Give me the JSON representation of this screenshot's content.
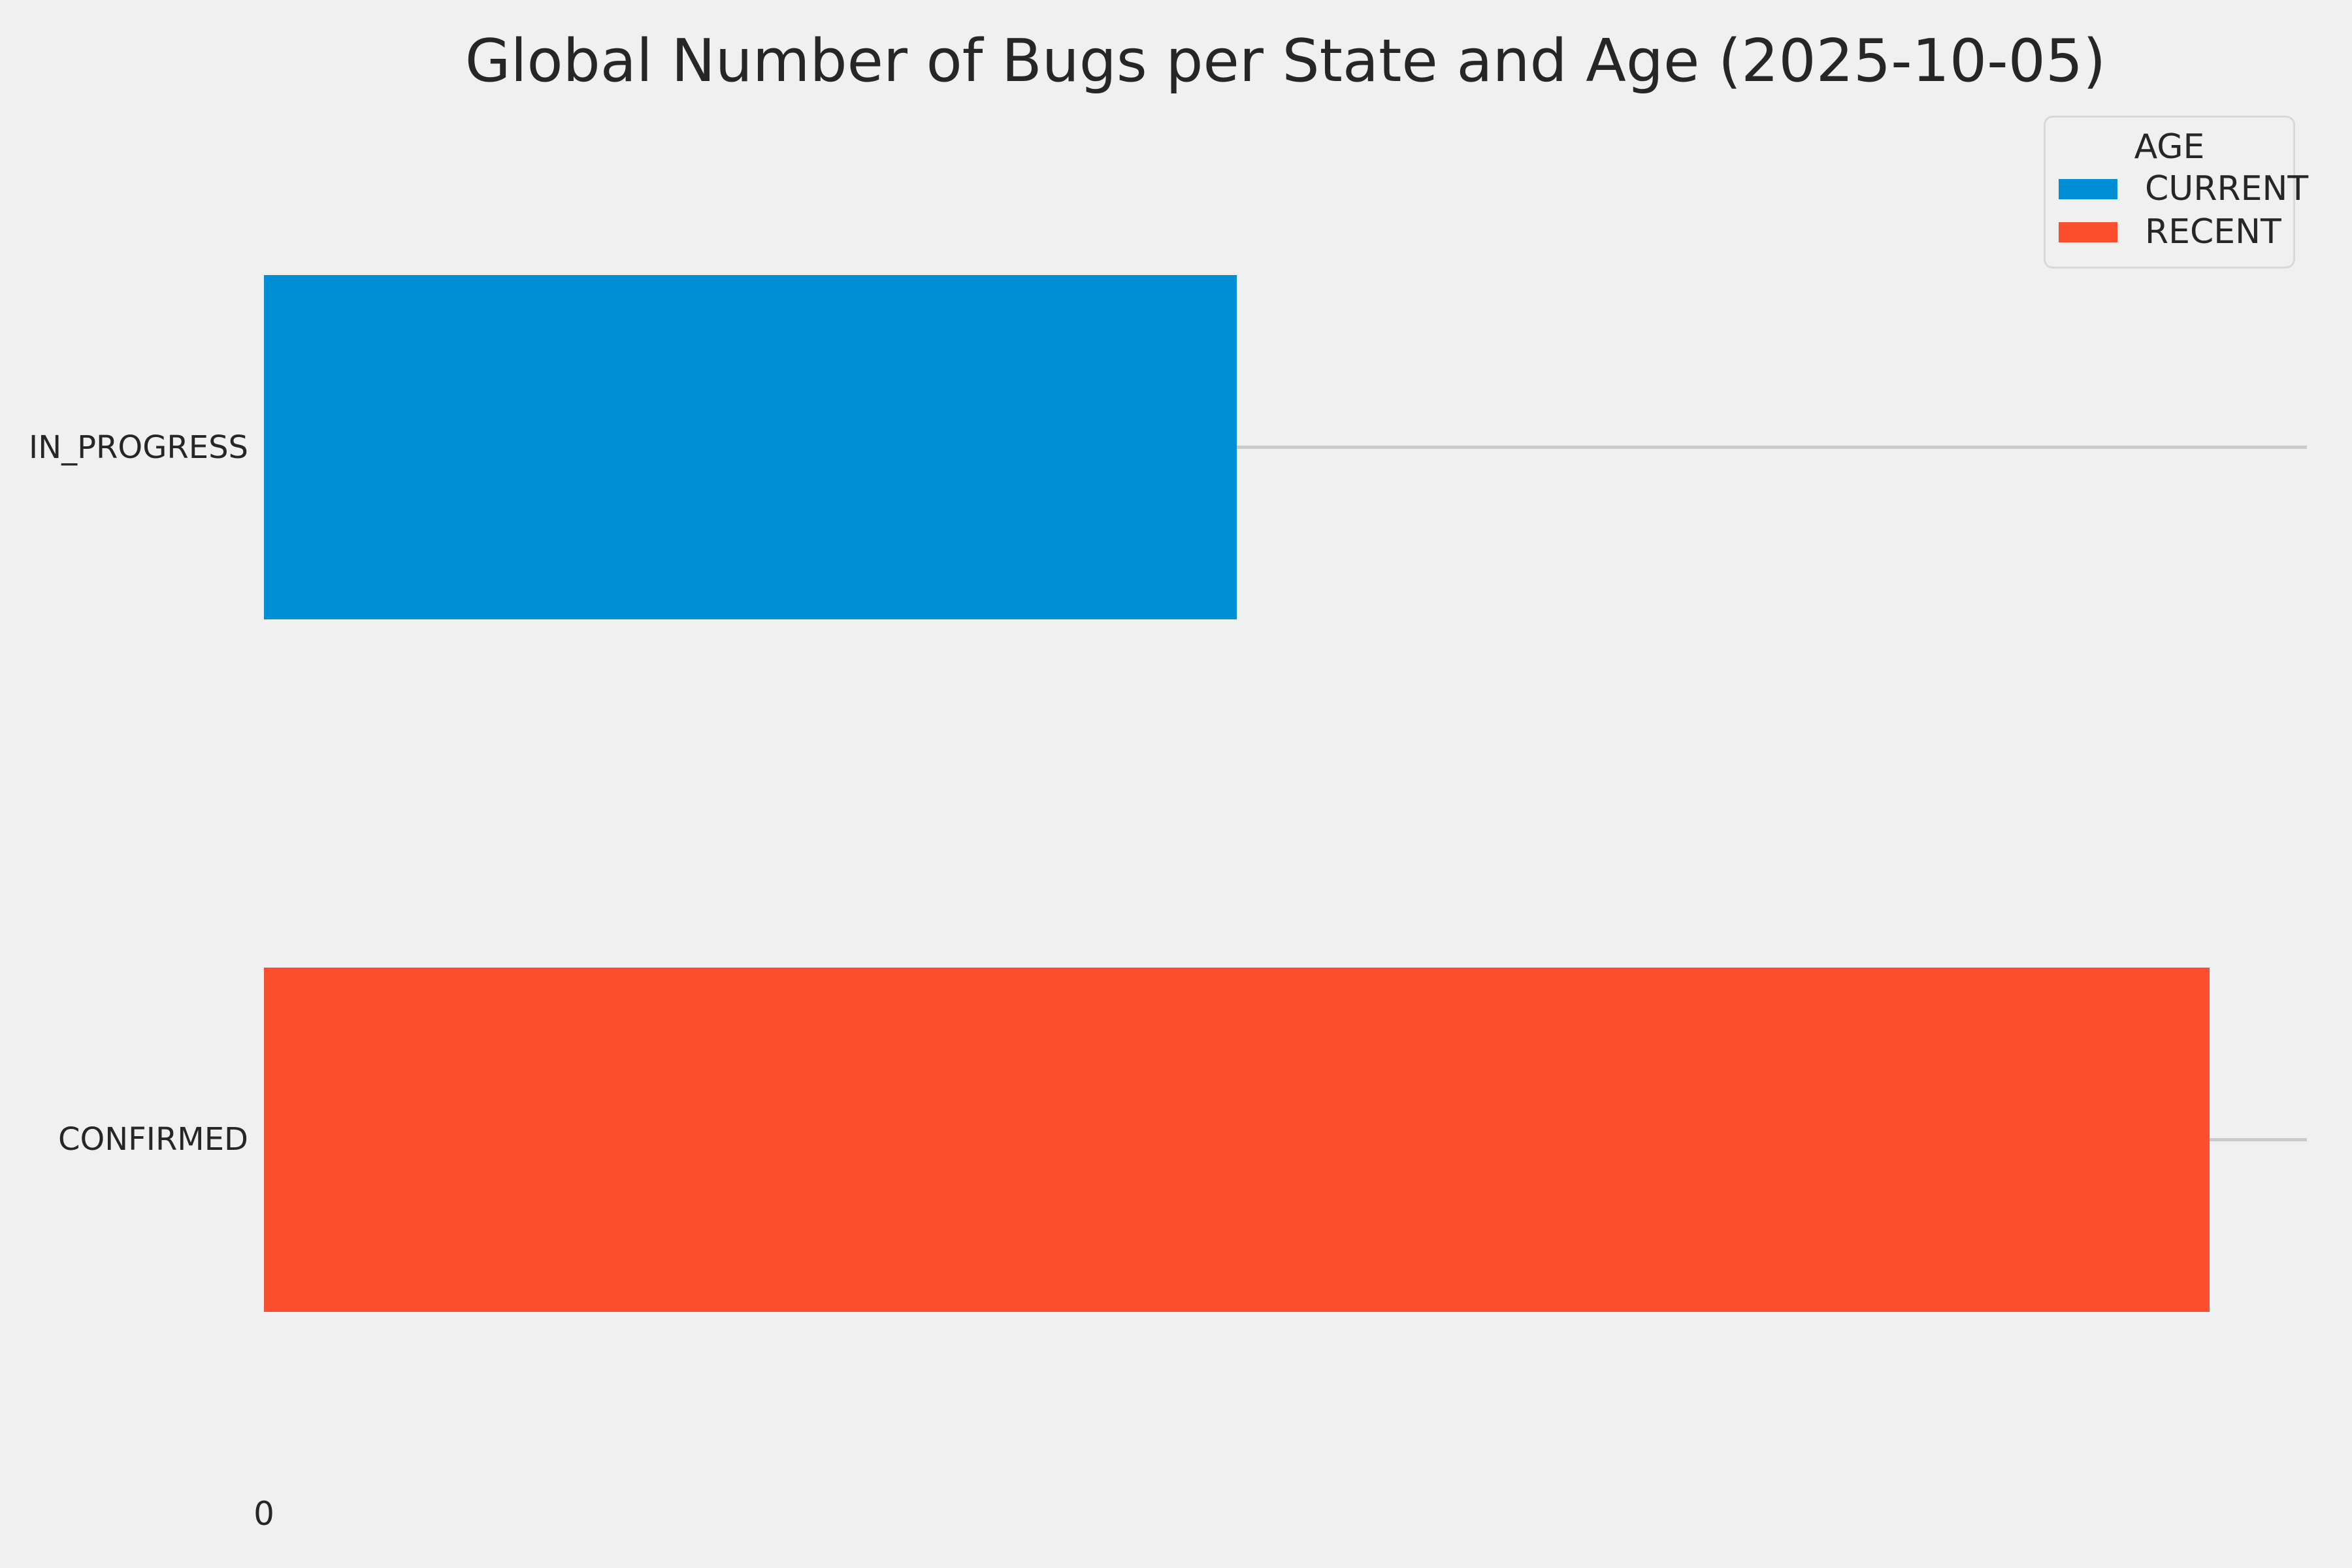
{
  "figure": {
    "background_color": "#f0f0f0",
    "text_color": "#262626",
    "grid_color": "#cbcbcb"
  },
  "chart_data": {
    "type": "bar",
    "orientation": "horizontal",
    "title": "Global Number of Bugs per State and Age (2025-10-05)",
    "categories": [
      "IN_PROGRESS",
      "CONFIRMED"
    ],
    "bars": [
      {
        "category": "IN_PROGRESS",
        "age": "CURRENT",
        "value": 1,
        "color": "#008fd5"
      },
      {
        "category": "CONFIRMED",
        "age": "RECENT",
        "value": 2,
        "color": "#fc4f30"
      }
    ],
    "xlabel": "",
    "ylabel": "",
    "xlim": [
      0,
      2.1
    ],
    "x_tick_labels": [
      "0"
    ],
    "grid": "horizontal-category-lines",
    "legend": {
      "title": "AGE",
      "position": "upper-right",
      "entries": [
        {
          "label": "CURRENT",
          "color": "#008fd5"
        },
        {
          "label": "RECENT",
          "color": "#fc4f30"
        }
      ]
    }
  }
}
